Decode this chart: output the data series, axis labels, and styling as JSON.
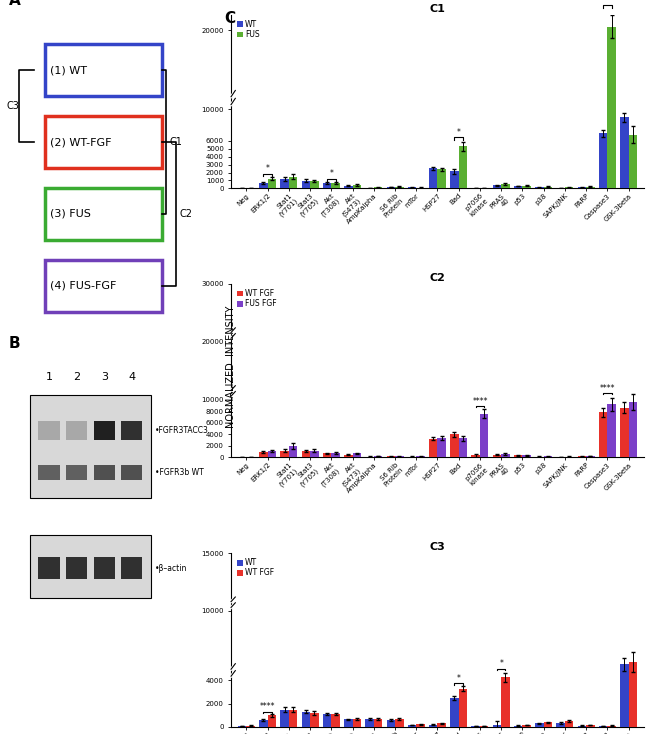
{
  "categories": [
    "Neg",
    "ERK1/2",
    "Stat1\n(Y701)",
    "Stat3\n(Y705)",
    "Akt\n(T308)",
    "Akt\n(S473)",
    "AmpKalpha",
    "S6 Rib\nProtein",
    "mTor",
    "HSP27",
    "Bad",
    "p70S6\nkinase",
    "PRAS\n40",
    "p53",
    "p38",
    "SAPK/JNK",
    "PARP",
    "Caspase3",
    "GSK-3beta"
  ],
  "C1_WT": [
    80,
    700,
    1200,
    980,
    650,
    330,
    80,
    180,
    130,
    2550,
    2150,
    50,
    380,
    290,
    130,
    80,
    130,
    7000,
    9000
  ],
  "C1_FUS": [
    80,
    1200,
    1480,
    920,
    720,
    430,
    120,
    200,
    90,
    2400,
    5300,
    50,
    550,
    340,
    190,
    130,
    190,
    20500,
    6800
  ],
  "C1_WT_err": [
    20,
    120,
    220,
    140,
    90,
    70,
    20,
    40,
    30,
    180,
    280,
    20,
    70,
    50,
    35,
    25,
    35,
    450,
    600
  ],
  "C1_FUS_err": [
    20,
    180,
    280,
    180,
    110,
    90,
    30,
    45,
    25,
    230,
    580,
    20,
    90,
    70,
    45,
    35,
    45,
    1400,
    1100
  ],
  "C2_WTFGF": [
    80,
    900,
    1200,
    1100,
    700,
    450,
    170,
    200,
    140,
    3250,
    4000,
    350,
    500,
    350,
    140,
    90,
    190,
    7800,
    8600
  ],
  "C2_FUSFGF": [
    80,
    1100,
    1950,
    1200,
    800,
    700,
    230,
    200,
    210,
    3400,
    3350,
    7600,
    600,
    390,
    190,
    140,
    240,
    9200,
    9600
  ],
  "C2_WTFGF_err": [
    20,
    140,
    230,
    190,
    95,
    95,
    45,
    45,
    35,
    280,
    380,
    180,
    90,
    65,
    35,
    25,
    45,
    750,
    950
  ],
  "C2_FUSFGF_err": [
    20,
    190,
    480,
    240,
    140,
    140,
    55,
    45,
    45,
    330,
    430,
    750,
    140,
    80,
    45,
    35,
    55,
    1100,
    1400
  ],
  "C3_WT": [
    40,
    580,
    1480,
    1280,
    1080,
    620,
    670,
    580,
    140,
    180,
    2480,
    40,
    180,
    90,
    280,
    330,
    90,
    40,
    5400
  ],
  "C3_WTFGF": [
    90,
    980,
    1480,
    1170,
    1080,
    670,
    670,
    670,
    190,
    280,
    3280,
    40,
    4280,
    140,
    380,
    480,
    140,
    90,
    5600
  ],
  "C3_WT_err": [
    15,
    90,
    180,
    140,
    95,
    75,
    75,
    75,
    35,
    45,
    190,
    15,
    280,
    25,
    55,
    65,
    25,
    15,
    560
  ],
  "C3_WTFGF_err": [
    25,
    140,
    180,
    170,
    110,
    85,
    85,
    85,
    45,
    55,
    240,
    15,
    380,
    35,
    65,
    75,
    35,
    25,
    860
  ],
  "color_WT": "#3444c8",
  "color_FUS": "#5aaf32",
  "color_WTFGF": "#e8312a",
  "color_FUSFGF": "#7b3fc8"
}
